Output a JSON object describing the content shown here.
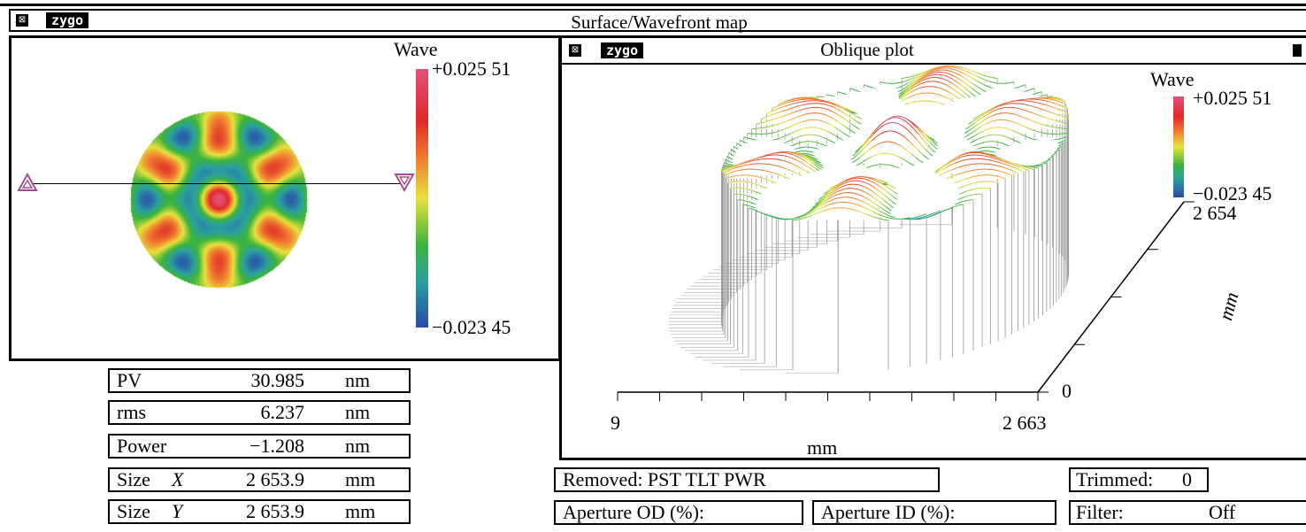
{
  "window": {
    "logo": "zygo",
    "title": "Surface/Wavefront map",
    "close_icon": "close-box-icon"
  },
  "surface_map": {
    "colorbar_title": "Wave",
    "max_label": "+0.025 51",
    "min_label": "−0.023 45"
  },
  "oblique_plot": {
    "logo": "zygo",
    "title": "Oblique plot",
    "colorbar_title": "Wave",
    "max_label": "+0.025 51",
    "min_label": "−0.023 45",
    "y_max_label": "2 654",
    "y_min_label": "0",
    "y_unit": "mm",
    "x_min_label": "9",
    "x_max_label": "2 663",
    "x_unit": "mm"
  },
  "results": [
    {
      "name": "PV",
      "value": "30.985",
      "unit": "nm"
    },
    {
      "name": "rms",
      "value": "6.237",
      "unit": "nm"
    },
    {
      "name": "Power",
      "value": "−1.208",
      "unit": "nm"
    },
    {
      "name": "Size",
      "axis": "X",
      "value": "2 653.9",
      "unit": "mm"
    },
    {
      "name": "Size",
      "axis": "Y",
      "value": "2 653.9",
      "unit": "mm"
    }
  ],
  "status": {
    "removed": "Removed: PST TLT PWR",
    "trimmed_label": "Trimmed:",
    "trimmed_value": "0",
    "aperture_od": "Aperture OD (%):",
    "aperture_id": "Aperture ID (%):",
    "filter_label": "Filter:",
    "filter_value": "Off"
  },
  "colors": {
    "low": "#2a4aa8",
    "mid": "#3cb43c",
    "yellow": "#e8e23c",
    "high": "#e02828",
    "top": "#e4507a"
  }
}
